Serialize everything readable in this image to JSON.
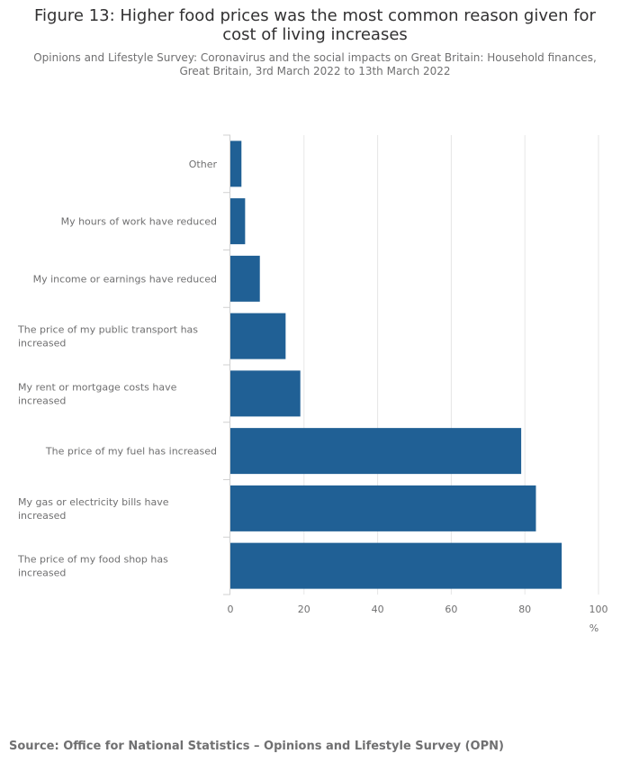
{
  "title": "Figure 13: Higher food prices was the most common reason given for cost of living increases",
  "subtitle": "Opinions and Lifestyle Survey: Coronavirus and the social impacts on Great Britain: Household finances, Great Britain, 3rd March 2022 to 13th March 2022",
  "source": "Source: Office for National Statistics – Opinions and Lifestyle Survey (OPN)",
  "chart_data": {
    "type": "bar",
    "orientation": "horizontal",
    "title": "Figure 13: Higher food prices was the most common reason given for cost of living increases",
    "categories": [
      "Other",
      "My hours of work have reduced",
      "My income or earnings have reduced",
      "The price of my public transport has increased",
      "My rent or mortgage costs have increased",
      "The price of my fuel has increased",
      "My gas or electricity bills have increased",
      "The price of my food shop has increased"
    ],
    "values": [
      3,
      4,
      8,
      15,
      19,
      79,
      83,
      90
    ],
    "xlabel": "%",
    "ylabel": "",
    "xlim": [
      0,
      100
    ],
    "xticks": [
      0,
      20,
      40,
      60,
      80,
      100
    ],
    "grid": true,
    "bar_color": "#206095"
  }
}
